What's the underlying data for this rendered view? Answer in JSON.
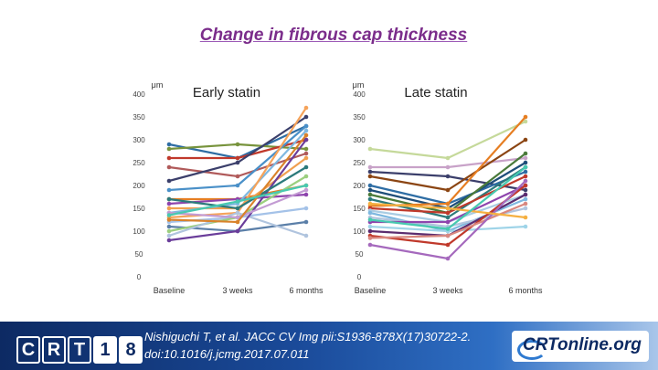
{
  "slide": {
    "title": "Change in fibrous cap thickness"
  },
  "footer": {
    "citation_line1": "Nishiguchi T, et al. JACC CV Img pii:S1936-878X(17)30722-2.",
    "citation_line2": "doi:10.1016/j.jcmg.2017.07.011",
    "crt_logo": [
      "C",
      "R",
      "T",
      "1",
      "8"
    ],
    "crtonline_logo": "CRTonline.org"
  },
  "chart_data": [
    {
      "type": "line",
      "title": "Early statin",
      "ylabel": "μm",
      "categories": [
        "Baseline",
        "3 weeks",
        "6 months"
      ],
      "ylim": [
        0,
        400
      ],
      "yticks": [
        0,
        50,
        100,
        150,
        200,
        250,
        300,
        350,
        400
      ],
      "grid": false,
      "series": [
        {
          "values": [
            290,
            260,
            330
          ],
          "color": "#2e6da4"
        },
        {
          "values": [
            280,
            290,
            280
          ],
          "color": "#77933c"
        },
        {
          "values": [
            260,
            260,
            300
          ],
          "color": "#c0392b"
        },
        {
          "values": [
            240,
            220,
            270
          ],
          "color": "#b05a5a"
        },
        {
          "values": [
            210,
            250,
            350
          ],
          "color": "#3b3f6b"
        },
        {
          "values": [
            190,
            200,
            330
          ],
          "color": "#4a90c8"
        },
        {
          "values": [
            170,
            170,
            200
          ],
          "color": "#e67e22"
        },
        {
          "values": [
            160,
            170,
            180
          ],
          "color": "#8e44ad"
        },
        {
          "values": [
            150,
            150,
            260
          ],
          "color": "#f0a050"
        },
        {
          "values": [
            140,
            160,
            320
          ],
          "color": "#7fb8e0"
        },
        {
          "values": [
            130,
            140,
            370
          ],
          "color": "#f5a35a"
        },
        {
          "values": [
            120,
            130,
            150
          ],
          "color": "#a4c2e8"
        },
        {
          "values": [
            110,
            100,
            120
          ],
          "color": "#5b7fa8"
        },
        {
          "values": [
            100,
            130,
            220
          ],
          "color": "#9ccf7f"
        },
        {
          "values": [
            90,
            140,
            90
          ],
          "color": "#b0c4de"
        },
        {
          "values": [
            80,
            100,
            300
          ],
          "color": "#6a3d9a"
        },
        {
          "values": [
            140,
            130,
            190
          ],
          "color": "#c39bd3"
        },
        {
          "values": [
            170,
            150,
            240
          ],
          "color": "#2c7a7b"
        },
        {
          "values": [
            125,
            120,
            310
          ],
          "color": "#d9822b"
        },
        {
          "values": [
            135,
            165,
            200
          ],
          "color": "#48c9b0"
        }
      ]
    },
    {
      "type": "line",
      "title": "Late statin",
      "ylabel": "μm",
      "categories": [
        "Baseline",
        "3 weeks",
        "6 months"
      ],
      "ylim": [
        0,
        400
      ],
      "yticks": [
        0,
        50,
        100,
        150,
        200,
        250,
        300,
        350,
        400
      ],
      "grid": false,
      "series": [
        {
          "values": [
            280,
            260,
            340
          ],
          "color": "#c5d99a"
        },
        {
          "values": [
            240,
            240,
            260
          ],
          "color": "#c8a2c8"
        },
        {
          "values": [
            230,
            220,
            190
          ],
          "color": "#3b3f6b"
        },
        {
          "values": [
            220,
            190,
            300
          ],
          "color": "#8b4513"
        },
        {
          "values": [
            200,
            160,
            230
          ],
          "color": "#2e6da4"
        },
        {
          "values": [
            190,
            150,
            250
          ],
          "color": "#1f4e79"
        },
        {
          "values": [
            180,
            140,
            270
          ],
          "color": "#4a7a3a"
        },
        {
          "values": [
            170,
            130,
            240
          ],
          "color": "#2c7a7b"
        },
        {
          "values": [
            155,
            160,
            350
          ],
          "color": "#e67e22"
        },
        {
          "values": [
            150,
            140,
            220
          ],
          "color": "#c0392b"
        },
        {
          "values": [
            145,
            120,
            180
          ],
          "color": "#a9cce3"
        },
        {
          "values": [
            140,
            100,
            170
          ],
          "color": "#7fb8e0"
        },
        {
          "values": [
            130,
            110,
            150
          ],
          "color": "#b0c4de"
        },
        {
          "values": [
            120,
            120,
            200
          ],
          "color": "#8e44ad"
        },
        {
          "values": [
            110,
            100,
            110
          ],
          "color": "#9fd4e8"
        },
        {
          "values": [
            100,
            90,
            180
          ],
          "color": "#5b2c6f"
        },
        {
          "values": [
            90,
            70,
            200
          ],
          "color": "#c0392b"
        },
        {
          "values": [
            85,
            90,
            160
          ],
          "color": "#d98880"
        },
        {
          "values": [
            70,
            40,
            210
          ],
          "color": "#a569bd"
        },
        {
          "values": [
            160,
            150,
            130
          ],
          "color": "#f5b041"
        },
        {
          "values": [
            125,
            105,
            240
          ],
          "color": "#48c9b0"
        }
      ]
    }
  ]
}
